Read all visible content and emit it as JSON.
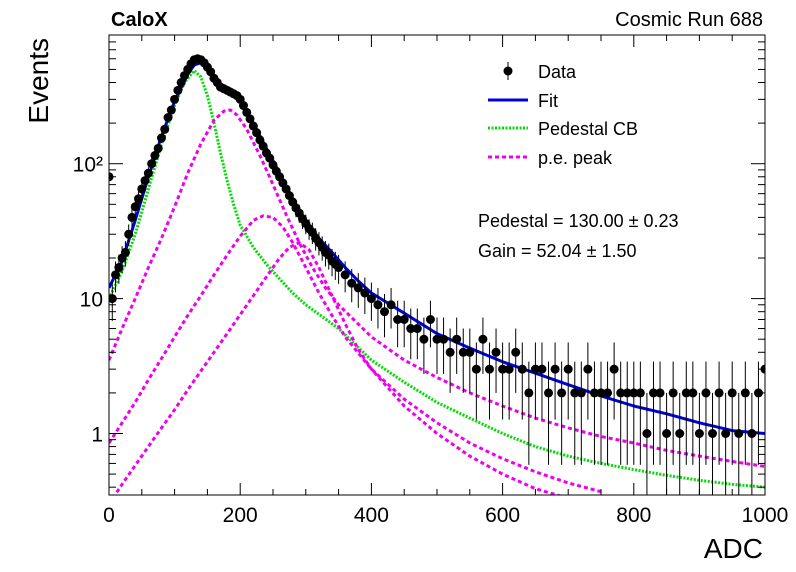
{
  "header": {
    "left": "CaloX",
    "right": "Cosmic Run 688"
  },
  "chart_data": {
    "type": "scatter",
    "title": "",
    "xlabel": "ADC",
    "ylabel": "Events",
    "xlim": [
      0,
      1000
    ],
    "ylim": [
      0.35,
      900
    ],
    "yscale": "log",
    "grid": false,
    "legend_position": "top-right",
    "x_ticks": [
      {
        "value": 0,
        "label": "0"
      },
      {
        "value": 200,
        "label": "200"
      },
      {
        "value": 400,
        "label": "400"
      },
      {
        "value": 600,
        "label": "600"
      },
      {
        "value": 800,
        "label": "800"
      },
      {
        "value": 1000,
        "label": "1000"
      }
    ],
    "y_ticks": [
      {
        "value": 1,
        "label": "1"
      },
      {
        "value": 10,
        "label": "10"
      },
      {
        "value": 100,
        "label": "10²"
      }
    ],
    "legend": [
      {
        "label": "Data",
        "style": "marker",
        "color": "#000000"
      },
      {
        "label": "Fit",
        "style": "solid",
        "color": "#0000dd"
      },
      {
        "label": "Pedestal CB",
        "style": "dotted",
        "color": "#00dd00"
      },
      {
        "label": "p.e. peak",
        "style": "dashed",
        "color": "#ee00ee"
      }
    ],
    "annotations": [
      {
        "id": "pedestal",
        "text": "Pedestal = 130.00 ± 0.23"
      },
      {
        "id": "gain",
        "text": "Gain = 52.04 ± 1.50"
      }
    ],
    "fit_parameters": {
      "pedestal": 130.0,
      "pedestal_err": 0.23,
      "gain": 52.04,
      "gain_err": 1.5
    },
    "series": [
      {
        "name": "Data",
        "color": "#000000",
        "points": [
          [
            0,
            80
          ],
          [
            5,
            10
          ],
          [
            10,
            15
          ],
          [
            15,
            17
          ],
          [
            20,
            20
          ],
          [
            25,
            22
          ],
          [
            30,
            30
          ],
          [
            35,
            40
          ],
          [
            40,
            48
          ],
          [
            45,
            55
          ],
          [
            50,
            65
          ],
          [
            55,
            75
          ],
          [
            60,
            85
          ],
          [
            65,
            100
          ],
          [
            70,
            115
          ],
          [
            75,
            130
          ],
          [
            80,
            155
          ],
          [
            85,
            180
          ],
          [
            90,
            220
          ],
          [
            95,
            250
          ],
          [
            100,
            300
          ],
          [
            105,
            350
          ],
          [
            110,
            400
          ],
          [
            115,
            450
          ],
          [
            120,
            500
          ],
          [
            125,
            550
          ],
          [
            130,
            590
          ],
          [
            135,
            600
          ],
          [
            140,
            590
          ],
          [
            145,
            560
          ],
          [
            150,
            520
          ],
          [
            155,
            480
          ],
          [
            160,
            430
          ],
          [
            165,
            400
          ],
          [
            170,
            370
          ],
          [
            175,
            360
          ],
          [
            180,
            350
          ],
          [
            185,
            340
          ],
          [
            190,
            330
          ],
          [
            195,
            320
          ],
          [
            200,
            300
          ],
          [
            205,
            270
          ],
          [
            210,
            240
          ],
          [
            215,
            215
          ],
          [
            220,
            190
          ],
          [
            225,
            170
          ],
          [
            230,
            150
          ],
          [
            235,
            135
          ],
          [
            240,
            120
          ],
          [
            245,
            110
          ],
          [
            250,
            98
          ],
          [
            255,
            88
          ],
          [
            260,
            80
          ],
          [
            265,
            72
          ],
          [
            270,
            65
          ],
          [
            275,
            58
          ],
          [
            280,
            52
          ],
          [
            285,
            47
          ],
          [
            290,
            43
          ],
          [
            295,
            39
          ],
          [
            300,
            36
          ],
          [
            305,
            33
          ],
          [
            310,
            31
          ],
          [
            315,
            28
          ],
          [
            320,
            26
          ],
          [
            325,
            24
          ],
          [
            330,
            22
          ],
          [
            335,
            21
          ],
          [
            340,
            19
          ],
          [
            345,
            18
          ],
          [
            350,
            17
          ],
          [
            360,
            15
          ],
          [
            370,
            13
          ],
          [
            380,
            12
          ],
          [
            390,
            11
          ],
          [
            400,
            10
          ],
          [
            410,
            9
          ],
          [
            420,
            8
          ],
          [
            430,
            9
          ],
          [
            440,
            7
          ],
          [
            450,
            7
          ],
          [
            460,
            6
          ],
          [
            470,
            6
          ],
          [
            480,
            5
          ],
          [
            490,
            7
          ],
          [
            500,
            5
          ],
          [
            510,
            5
          ],
          [
            520,
            4
          ],
          [
            530,
            5
          ],
          [
            540,
            4
          ],
          [
            550,
            4
          ],
          [
            560,
            3
          ],
          [
            570,
            5
          ],
          [
            580,
            3
          ],
          [
            590,
            4
          ],
          [
            600,
            3
          ],
          [
            610,
            3
          ],
          [
            620,
            4
          ],
          [
            630,
            3
          ],
          [
            640,
            2
          ],
          [
            650,
            3
          ],
          [
            660,
            3
          ],
          [
            670,
            2
          ],
          [
            680,
            3
          ],
          [
            690,
            2
          ],
          [
            700,
            3
          ],
          [
            710,
            2
          ],
          [
            720,
            2
          ],
          [
            730,
            3
          ],
          [
            740,
            2
          ],
          [
            750,
            2
          ],
          [
            760,
            2
          ],
          [
            770,
            3
          ],
          [
            780,
            2
          ],
          [
            790,
            2
          ],
          [
            800,
            2
          ],
          [
            810,
            2
          ],
          [
            820,
            1
          ],
          [
            830,
            2
          ],
          [
            840,
            2
          ],
          [
            850,
            1
          ],
          [
            860,
            2
          ],
          [
            870,
            1
          ],
          [
            880,
            2
          ],
          [
            890,
            2
          ],
          [
            900,
            1
          ],
          [
            910,
            2
          ],
          [
            920,
            1
          ],
          [
            930,
            2
          ],
          [
            940,
            1
          ],
          [
            950,
            2
          ],
          [
            960,
            1
          ],
          [
            970,
            2
          ],
          [
            980,
            1
          ],
          [
            990,
            2
          ],
          [
            1000,
            3
          ]
        ]
      },
      {
        "name": "Fit",
        "color": "#0000dd",
        "points": [
          [
            0,
            12
          ],
          [
            20,
            19
          ],
          [
            40,
            38
          ],
          [
            60,
            80
          ],
          [
            80,
            160
          ],
          [
            100,
            290
          ],
          [
            120,
            460
          ],
          [
            130,
            540
          ],
          [
            140,
            560
          ],
          [
            150,
            500
          ],
          [
            160,
            430
          ],
          [
            170,
            380
          ],
          [
            180,
            360
          ],
          [
            190,
            340
          ],
          [
            200,
            300
          ],
          [
            220,
            200
          ],
          [
            240,
            130
          ],
          [
            260,
            85
          ],
          [
            280,
            55
          ],
          [
            300,
            38
          ],
          [
            320,
            28
          ],
          [
            340,
            22
          ],
          [
            360,
            17
          ],
          [
            380,
            13.5
          ],
          [
            400,
            11
          ],
          [
            450,
            7.8
          ],
          [
            500,
            5.5
          ],
          [
            550,
            4.3
          ],
          [
            600,
            3.4
          ],
          [
            650,
            2.8
          ],
          [
            700,
            2.3
          ],
          [
            750,
            1.9
          ],
          [
            800,
            1.6
          ],
          [
            850,
            1.4
          ],
          [
            900,
            1.2
          ],
          [
            950,
            1.05
          ],
          [
            1000,
            1.0
          ]
        ]
      },
      {
        "name": "Pedestal CB",
        "color": "#00dd00",
        "points": [
          [
            0,
            10
          ],
          [
            20,
            16
          ],
          [
            40,
            30
          ],
          [
            60,
            65
          ],
          [
            80,
            140
          ],
          [
            100,
            270
          ],
          [
            115,
            400
          ],
          [
            130,
            490
          ],
          [
            140,
            440
          ],
          [
            150,
            320
          ],
          [
            160,
            200
          ],
          [
            170,
            120
          ],
          [
            180,
            75
          ],
          [
            190,
            50
          ],
          [
            200,
            35
          ],
          [
            220,
            24
          ],
          [
            240,
            18
          ],
          [
            260,
            14
          ],
          [
            280,
            11
          ],
          [
            300,
            9
          ],
          [
            350,
            6
          ],
          [
            400,
            3.5
          ],
          [
            450,
            2.4
          ],
          [
            500,
            1.7
          ],
          [
            550,
            1.3
          ],
          [
            600,
            1.0
          ],
          [
            650,
            0.8
          ],
          [
            700,
            0.68
          ],
          [
            750,
            0.6
          ],
          [
            800,
            0.54
          ],
          [
            850,
            0.49
          ],
          [
            900,
            0.45
          ],
          [
            950,
            0.42
          ],
          [
            1000,
            0.4
          ]
        ]
      },
      {
        "name": "p.e. peak 1",
        "color": "#ee00ee",
        "points": [
          [
            0,
            3.5
          ],
          [
            20,
            6
          ],
          [
            40,
            10
          ],
          [
            60,
            17
          ],
          [
            80,
            28
          ],
          [
            100,
            48
          ],
          [
            120,
            85
          ],
          [
            140,
            140
          ],
          [
            160,
            210
          ],
          [
            175,
            245
          ],
          [
            185,
            250
          ],
          [
            195,
            230
          ],
          [
            210,
            180
          ],
          [
            230,
            115
          ],
          [
            250,
            70
          ],
          [
            270,
            42
          ],
          [
            290,
            26
          ],
          [
            310,
            17
          ],
          [
            330,
            12
          ],
          [
            350,
            9
          ],
          [
            400,
            5.2
          ],
          [
            450,
            3.5
          ],
          [
            500,
            2.6
          ],
          [
            550,
            2.0
          ],
          [
            600,
            1.6
          ],
          [
            650,
            1.3
          ],
          [
            700,
            1.1
          ],
          [
            750,
            0.95
          ],
          [
            800,
            0.85
          ],
          [
            850,
            0.75
          ],
          [
            900,
            0.68
          ],
          [
            950,
            0.62
          ],
          [
            1000,
            0.57
          ]
        ]
      },
      {
        "name": "p.e. peak 2",
        "color": "#ee00ee",
        "points": [
          [
            0,
            0.85
          ],
          [
            20,
            1.2
          ],
          [
            40,
            1.7
          ],
          [
            60,
            2.5
          ],
          [
            80,
            3.6
          ],
          [
            100,
            5.2
          ],
          [
            120,
            7.5
          ],
          [
            140,
            10.5
          ],
          [
            160,
            15
          ],
          [
            180,
            21
          ],
          [
            200,
            29
          ],
          [
            220,
            38
          ],
          [
            235,
            41
          ],
          [
            250,
            40
          ],
          [
            265,
            34
          ],
          [
            280,
            26
          ],
          [
            300,
            17
          ],
          [
            320,
            11
          ],
          [
            340,
            7.5
          ],
          [
            360,
            5.2
          ],
          [
            400,
            3.0
          ],
          [
            450,
            1.8
          ],
          [
            500,
            1.2
          ],
          [
            550,
            0.85
          ],
          [
            600,
            0.65
          ],
          [
            650,
            0.52
          ],
          [
            700,
            0.43
          ],
          [
            750,
            0.37
          ]
        ]
      },
      {
        "name": "p.e. peak 3",
        "color": "#ee00ee",
        "points": [
          [
            0,
            0.3
          ],
          [
            20,
            0.42
          ],
          [
            40,
            0.58
          ],
          [
            60,
            0.8
          ],
          [
            80,
            1.1
          ],
          [
            100,
            1.5
          ],
          [
            120,
            2.1
          ],
          [
            140,
            2.9
          ],
          [
            160,
            4.0
          ],
          [
            180,
            5.5
          ],
          [
            200,
            7.6
          ],
          [
            220,
            10.5
          ],
          [
            240,
            14.5
          ],
          [
            260,
            20
          ],
          [
            275,
            24
          ],
          [
            290,
            26
          ],
          [
            305,
            23
          ],
          [
            320,
            17
          ],
          [
            340,
            10.5
          ],
          [
            360,
            6.5
          ],
          [
            380,
            4.2
          ],
          [
            400,
            3.0
          ],
          [
            450,
            1.6
          ],
          [
            500,
            1.0
          ],
          [
            550,
            0.68
          ],
          [
            600,
            0.5
          ],
          [
            650,
            0.39
          ],
          [
            700,
            0.33
          ]
        ]
      }
    ]
  }
}
